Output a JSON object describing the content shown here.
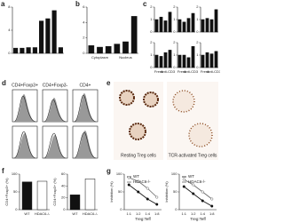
{
  "chart_data": [
    {
      "panel": "a",
      "type": "bar",
      "categories": [
        null,
        null,
        null,
        null,
        null,
        null,
        null,
        null
      ],
      "values": [
        0.9,
        0.9,
        1,
        1,
        5.6,
        6,
        7.4,
        1
      ],
      "color": "#111",
      "ylim": [
        0,
        8
      ],
      "yticks": [
        0,
        4,
        8
      ]
    },
    {
      "panel": "b",
      "type": "bar",
      "categories": [
        null,
        null,
        null,
        null,
        null,
        null
      ],
      "values": [
        1,
        0.8,
        0.9,
        1.2,
        1.5,
        4.8
      ],
      "color": "#111",
      "ylim": [
        0,
        6
      ],
      "yticks": [
        0,
        2,
        4,
        6
      ],
      "group_labels": [
        "Cytoplasm",
        "Nucleus"
      ]
    },
    {
      "panel": "c",
      "type": "bar",
      "categories": [
        null,
        null,
        null,
        null
      ],
      "values": [
        1,
        1.2,
        0.9,
        1.6
      ],
      "color": "#111",
      "ylim": [
        0,
        2
      ],
      "yticks": [
        0,
        1,
        2
      ]
    },
    {
      "type": "bar",
      "categories": [
        null,
        null,
        null,
        null
      ],
      "values": [
        1,
        0.8,
        1.1,
        1.5
      ],
      "color": "#111",
      "ylim": [
        0,
        2
      ],
      "yticks": [
        0,
        1,
        2
      ]
    },
    {
      "type": "bar",
      "categories": [
        null,
        null,
        null,
        null
      ],
      "values": [
        1,
        1.1,
        1,
        1.8
      ],
      "color": "#111",
      "ylim": [
        0,
        2
      ],
      "yticks": [
        0,
        1,
        2
      ]
    },
    {
      "type": "bar",
      "categories": [
        null,
        null,
        null,
        null
      ],
      "values": [
        1,
        0.9,
        1.2,
        1.4
      ],
      "color": "#111",
      "ylim": [
        0,
        2
      ],
      "yticks": [
        0,
        1,
        2
      ],
      "group_labels": [
        "Fresh",
        "Anti-CD3"
      ]
    },
    {
      "type": "bar",
      "categories": [
        null,
        null,
        null,
        null
      ],
      "values": [
        1,
        1,
        0.8,
        1.7
      ],
      "color": "#111",
      "ylim": [
        0,
        2
      ],
      "yticks": [
        0,
        1,
        2
      ],
      "group_labels": [
        "Fresh",
        "Anti-CD3"
      ]
    },
    {
      "type": "bar",
      "categories": [
        null,
        null,
        null,
        null
      ],
      "values": [
        1,
        1.2,
        1.1,
        1.3
      ],
      "color": "#111",
      "ylim": [
        0,
        2
      ],
      "yticks": [
        0,
        1,
        2
      ],
      "group_labels": [
        "Fresh",
        "Anti-CD3"
      ]
    },
    {
      "panel": "f",
      "type": "bar",
      "categories": [
        "WT",
        "HDAC6-/-"
      ],
      "values": [
        78,
        80
      ],
      "colors": [
        "#111",
        "#fff"
      ],
      "ylim": [
        0,
        100
      ],
      "yticks": [
        0,
        50,
        100
      ],
      "y_label": "CD4+Foxp3+ (%)"
    },
    {
      "type": "bar",
      "categories": [
        "WT",
        "HDAC6-/-"
      ],
      "values": [
        25,
        52
      ],
      "colors": [
        "#111",
        "#fff"
      ],
      "ylim": [
        0,
        60
      ],
      "yticks": [
        0,
        20,
        40,
        60
      ],
      "y_label": "CD4+Foxp3+ (%)"
    },
    {
      "panel": "g",
      "type": "line",
      "categories": [
        "1:1",
        "1:2",
        "1:4",
        "1:8"
      ],
      "x_label": "Treg:Teff",
      "ylim": [
        0,
        100
      ],
      "yticks": [
        0,
        50,
        100
      ],
      "y_label": "Inhibition (%)",
      "series": [
        {
          "name": "WT",
          "color": "#111",
          "values": [
            70,
            50,
            30,
            15
          ]
        },
        {
          "name": "HDAC6-/-",
          "color": "#666",
          "values": [
            90,
            80,
            60,
            35
          ]
        }
      ]
    },
    {
      "type": "line",
      "categories": [
        "1:1",
        "1:2",
        "1:4",
        "1:8"
      ],
      "x_label": "Treg:Teff",
      "ylim": [
        0,
        100
      ],
      "yticks": [
        0,
        50,
        100
      ],
      "y_label": "Inhibition (%)",
      "series": [
        {
          "name": "WT",
          "color": "#111",
          "values": [
            65,
            45,
            25,
            10
          ]
        },
        {
          "name": "HDAC6-/-",
          "color": "#666",
          "values": [
            85,
            70,
            50,
            30
          ]
        }
      ]
    }
  ],
  "flow": {
    "panel": "d",
    "columns": [
      "CD4+Foxp3+",
      "CD4+Foxp3-",
      "CD4+"
    ]
  },
  "images": {
    "panel": "e",
    "captions": [
      "Resting Treg cells",
      "TCR-activated Treg cells"
    ]
  }
}
